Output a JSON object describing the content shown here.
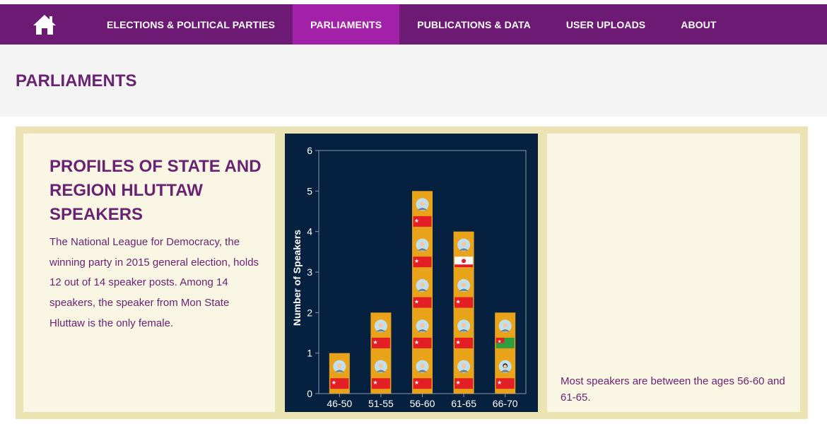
{
  "nav": {
    "home_icon": "home-icon",
    "items": [
      {
        "label": "ELECTIONS & POLITICAL PARTIES",
        "active": false
      },
      {
        "label": "PARLIAMENTS",
        "active": true
      },
      {
        "label": "PUBLICATIONS & DATA",
        "active": false
      },
      {
        "label": "USER UPLOADS",
        "active": false
      },
      {
        "label": "ABOUT",
        "active": false
      }
    ]
  },
  "page": {
    "title": "PARLIAMENTS"
  },
  "profile": {
    "title": "PROFILES OF STATE AND REGION HLUTTAW SPEAKERS",
    "description": "The National League for Democracy, the winning party in 2015 general election, holds 12 out of 14 speaker posts. Among 14 speakers, the speaker from Mon State Hluttaw is the only female."
  },
  "note": "Most speakers are between the ages 56-60 and 61-65.",
  "colors": {
    "nav_bg": "#6c1a74",
    "nav_active": "#a321a8",
    "heading": "#6a2273",
    "chart_bg": "#06203f",
    "bar": "#e8a31a",
    "nld_flag": "#e31e24",
    "other_flag_green": "#2e9e3f"
  },
  "chart_data": {
    "type": "bar",
    "categories": [
      "46-50",
      "51-55",
      "56-60",
      "61-65",
      "66-70"
    ],
    "values": [
      1,
      2,
      5,
      4,
      2
    ],
    "ylabel": "Number of Speakers",
    "xlabel": "",
    "ylim": [
      0,
      6
    ],
    "yticks": [
      0,
      1,
      2,
      3,
      4,
      5,
      6
    ],
    "units": [
      [
        "NLD-male"
      ],
      [
        "NLD-male",
        "NLD-male"
      ],
      [
        "NLD-male",
        "NLD-male",
        "NLD-male",
        "NLD-male",
        "NLD-male"
      ],
      [
        "NLD-male",
        "NLD-male",
        "NLD-male",
        "other-white-male"
      ],
      [
        "NLD-female",
        "other-green-male"
      ]
    ]
  }
}
